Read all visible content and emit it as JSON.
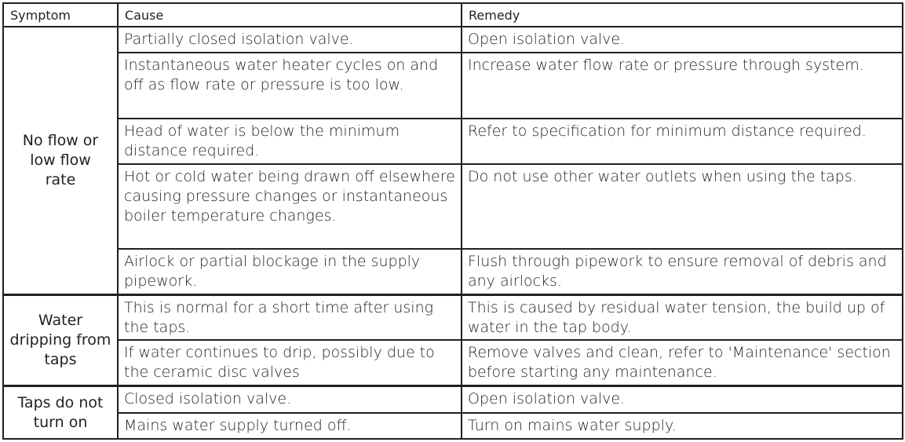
{
  "headers": {
    "symptom": "Symptom",
    "cause": "Cause",
    "remedy": "Remedy"
  },
  "groups": [
    {
      "symptom": "No flow or low flow rate",
      "rows": [
        {
          "cause": "Partially closed isolation valve.",
          "remedy": "Open isolation valve."
        },
        {
          "cause": "Instantaneous water heater cycles on and off as flow rate or pressure is too low.",
          "remedy": "Increase water flow rate or pressure through system."
        },
        {
          "cause": "Head of water is below the minimum distance required.",
          "remedy": "Refer to specification for minimum distance required."
        },
        {
          "cause": "Hot or cold water being drawn off elsewhere causing pressure changes or instantaneous boiler temperature changes.",
          "remedy": "Do not use other water outlets when using the taps."
        },
        {
          "cause": "Airlock or partial blockage in the supply pipework.",
          "remedy": "Flush through pipework to ensure removal of debris and any airlocks."
        }
      ]
    },
    {
      "symptom": "Water dripping from taps",
      "rows": [
        {
          "cause": "This is normal for a short time after using the taps.",
          "remedy": "This is caused by residual water tension, the build up of water in the tap body."
        },
        {
          "cause": "If water continues to drip, possibly due to the ceramic disc valves",
          "remedy": "Remove valves and clean, refer to 'Maintenance' section before starting any maintenance."
        }
      ]
    },
    {
      "symptom": "Taps do not turn on",
      "rows": [
        {
          "cause": "Closed isolation valve.",
          "remedy": "Open isolation valve."
        },
        {
          "cause": "Mains water supply turned off.",
          "remedy": "Turn on mains water supply."
        }
      ]
    }
  ]
}
